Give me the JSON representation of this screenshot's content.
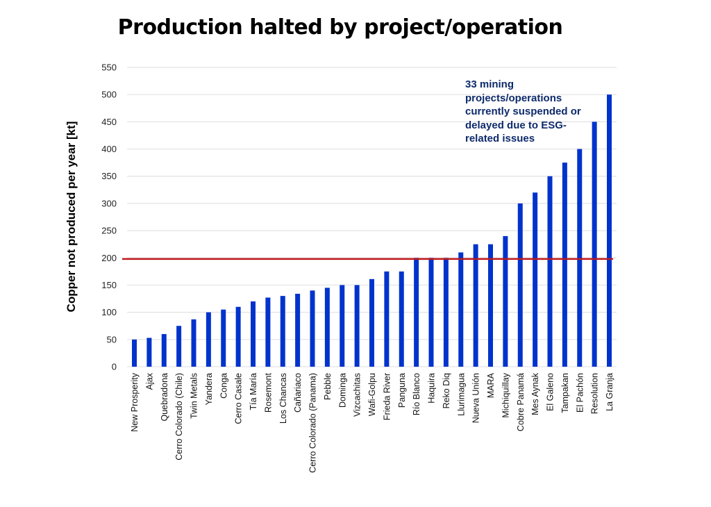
{
  "chart_data": {
    "type": "bar",
    "title": "Production halted by project/operation",
    "xlabel": "",
    "ylabel": "Copper not produced per year [kt]",
    "ylim": [
      0,
      550
    ],
    "yticks": [
      0,
      50,
      100,
      150,
      200,
      250,
      300,
      350,
      400,
      450,
      500,
      550
    ],
    "grid": true,
    "bar_color": "#0033cc",
    "reference_line": {
      "value": 198,
      "color": "#c0191c"
    },
    "annotation": "33 mining projects/operations currently suspended or delayed due to ESG-related issues",
    "annotation_color": "#0d2a6b",
    "categories": [
      "New Prosperity",
      "Ajax",
      "Quebradona",
      "Cerro Colorado (Chile)",
      "Twin Metals",
      "Yandera",
      "Conga",
      "Cerro Casale",
      "Tía María",
      "Rosemont",
      "Los Chancas",
      "Cañariaco",
      "Cerro Colorado (Panama)",
      "Pebble",
      "Dominga",
      "Vizcachitas",
      "Wafi-Golpu",
      "Frieda River",
      "Panguna",
      "Río Blanco",
      "Haquira",
      "Reko Diq",
      "Llurimagua",
      "Nueva Unión",
      "MARA",
      "Michiquillay",
      "Cobre Panamá",
      "Mes Aynak",
      "El Galeno",
      "Tampakan",
      "El Pachón",
      "Resolution",
      "La Granja"
    ],
    "values": [
      50,
      53,
      60,
      75,
      87,
      100,
      105,
      110,
      120,
      127,
      130,
      134,
      140,
      145,
      150,
      150,
      161,
      175,
      175,
      200,
      200,
      200,
      210,
      225,
      225,
      240,
      300,
      320,
      350,
      375,
      400,
      450,
      500
    ]
  }
}
